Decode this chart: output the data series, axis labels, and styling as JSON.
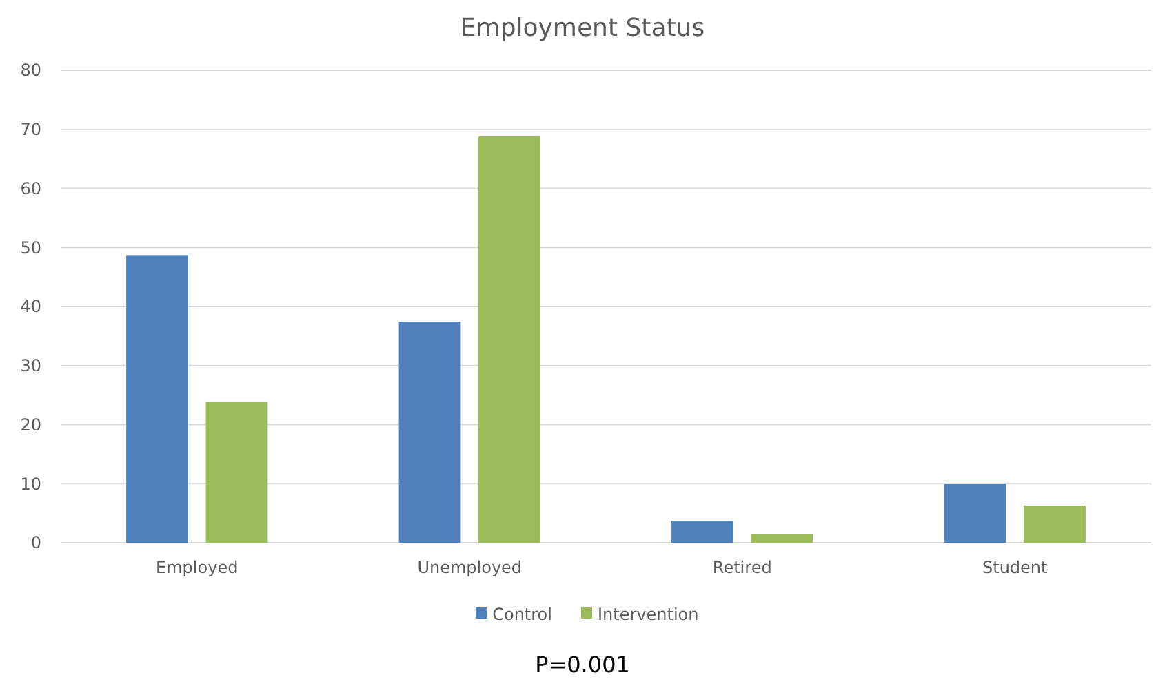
{
  "chart_data": {
    "type": "bar",
    "title": "Employment Status",
    "categories": [
      "Employed",
      "Unemployed",
      "Retired",
      "Student"
    ],
    "series": [
      {
        "name": "Control",
        "color": "#4f81bd",
        "values": [
          48.7,
          37.4,
          3.7,
          10.0
        ]
      },
      {
        "name": "Intervention",
        "color": "#9bbb59",
        "values": [
          23.8,
          68.8,
          1.4,
          6.3
        ]
      }
    ],
    "ylim": [
      0,
      80
    ],
    "yticks": [
      0,
      10,
      20,
      30,
      40,
      50,
      60,
      70,
      80
    ],
    "grid": "y",
    "legend": "bottom",
    "annotations": [
      "P=0.001"
    ]
  }
}
